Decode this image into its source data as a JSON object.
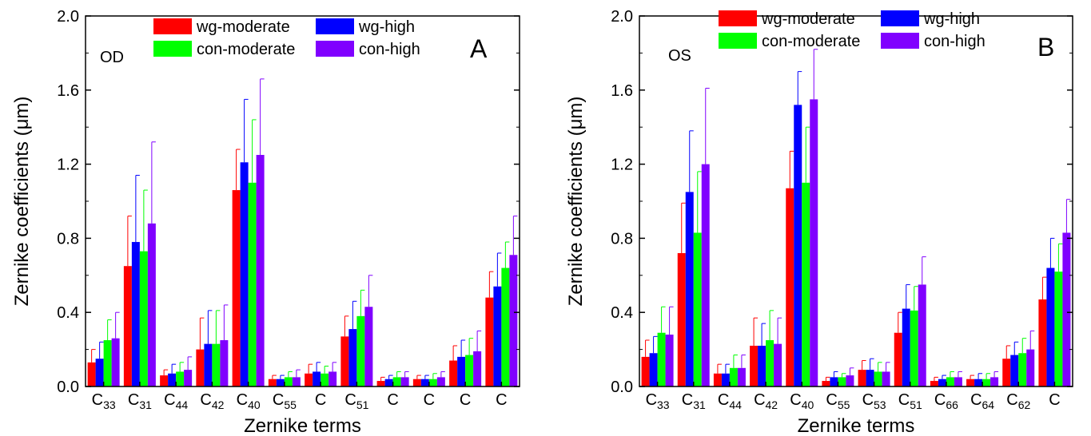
{
  "colors": {
    "wg_moderate": "#ff0000",
    "wg_high": "#0000ff",
    "con_moderate": "#00ff00",
    "con_high": "#8000ff",
    "axis": "#000000"
  },
  "chart_data": [
    {
      "type": "bar",
      "panel_letter": "A",
      "eye_label": "OD",
      "xlabel": "Zernike terms",
      "ylabel": "Zernike coefficients (μm)",
      "ylim": [
        0,
        2.0
      ],
      "yticks": [
        "0.0",
        "0.4",
        "0.8",
        "1.2",
        "1.6",
        "2.0"
      ],
      "grid": false,
      "legend_position": "top",
      "categories": [
        {
          "base": "C",
          "sub": "33"
        },
        {
          "base": "C",
          "sub": "31"
        },
        {
          "base": "C",
          "sub": "44"
        },
        {
          "base": "C",
          "sub": "42"
        },
        {
          "base": "C",
          "sub": "40"
        },
        {
          "base": "C",
          "sub": "55"
        },
        {
          "base": "C",
          "sub": ""
        },
        {
          "base": "C",
          "sub": "51"
        },
        {
          "base": "C",
          "sub": ""
        },
        {
          "base": "C",
          "sub": ""
        },
        {
          "base": "C",
          "sub": ""
        },
        {
          "base": "C",
          "sub": ""
        }
      ],
      "series": [
        {
          "name": "wg-moderate",
          "color_key": "wg_moderate",
          "values": [
            0.13,
            0.65,
            0.06,
            0.2,
            1.06,
            0.04,
            0.07,
            0.27,
            0.03,
            0.04,
            0.14,
            0.48
          ],
          "errors": [
            0.07,
            0.27,
            0.03,
            0.17,
            0.22,
            0.02,
            0.05,
            0.11,
            0.02,
            0.02,
            0.08,
            0.14
          ]
        },
        {
          "name": "wg-high",
          "color_key": "wg_high",
          "values": [
            0.15,
            0.78,
            0.07,
            0.23,
            1.21,
            0.04,
            0.08,
            0.31,
            0.04,
            0.04,
            0.16,
            0.54
          ],
          "errors": [
            0.09,
            0.36,
            0.05,
            0.18,
            0.34,
            0.02,
            0.05,
            0.15,
            0.02,
            0.02,
            0.09,
            0.18
          ]
        },
        {
          "name": "con-moderate",
          "color_key": "con_moderate",
          "values": [
            0.25,
            0.73,
            0.08,
            0.23,
            1.1,
            0.05,
            0.07,
            0.38,
            0.05,
            0.04,
            0.17,
            0.64
          ],
          "errors": [
            0.11,
            0.33,
            0.05,
            0.18,
            0.34,
            0.03,
            0.04,
            0.14,
            0.03,
            0.03,
            0.09,
            0.14
          ]
        },
        {
          "name": "con-high",
          "color_key": "con_high",
          "values": [
            0.26,
            0.88,
            0.09,
            0.25,
            1.25,
            0.05,
            0.08,
            0.43,
            0.05,
            0.05,
            0.19,
            0.71
          ],
          "errors": [
            0.14,
            0.44,
            0.07,
            0.19,
            0.41,
            0.04,
            0.05,
            0.17,
            0.03,
            0.03,
            0.11,
            0.21
          ]
        }
      ]
    },
    {
      "type": "bar",
      "panel_letter": "B",
      "eye_label": "OS",
      "xlabel": "Zernike terms",
      "ylabel": "Zernike coefficients (μm)",
      "ylim": [
        0,
        2.0
      ],
      "yticks": [
        "0.0",
        "0.4",
        "0.8",
        "1.2",
        "1.6",
        "2.0"
      ],
      "grid": false,
      "legend_position": "top",
      "categories": [
        {
          "base": "C",
          "sub": "33"
        },
        {
          "base": "C",
          "sub": "31"
        },
        {
          "base": "C",
          "sub": "44"
        },
        {
          "base": "C",
          "sub": "42"
        },
        {
          "base": "C",
          "sub": "40"
        },
        {
          "base": "C",
          "sub": "55"
        },
        {
          "base": "C",
          "sub": "53"
        },
        {
          "base": "C",
          "sub": "51"
        },
        {
          "base": "C",
          "sub": "66"
        },
        {
          "base": "C",
          "sub": "64"
        },
        {
          "base": "C",
          "sub": "62"
        },
        {
          "base": "C",
          "sub": ""
        }
      ],
      "series": [
        {
          "name": "wg-moderate",
          "color_key": "wg_moderate",
          "values": [
            0.16,
            0.72,
            0.07,
            0.22,
            1.07,
            0.03,
            0.09,
            0.29,
            0.03,
            0.04,
            0.15,
            0.47
          ],
          "errors": [
            0.09,
            0.27,
            0.05,
            0.15,
            0.2,
            0.02,
            0.05,
            0.11,
            0.02,
            0.02,
            0.07,
            0.12
          ]
        },
        {
          "name": "wg-high",
          "color_key": "wg_high",
          "values": [
            0.18,
            1.05,
            0.07,
            0.22,
            1.52,
            0.05,
            0.09,
            0.42,
            0.04,
            0.04,
            0.17,
            0.64
          ],
          "errors": [
            0.09,
            0.33,
            0.05,
            0.12,
            0.18,
            0.03,
            0.06,
            0.13,
            0.02,
            0.03,
            0.07,
            0.16
          ]
        },
        {
          "name": "con-moderate",
          "color_key": "con_moderate",
          "values": [
            0.29,
            0.83,
            0.1,
            0.25,
            1.1,
            0.05,
            0.08,
            0.41,
            0.05,
            0.04,
            0.18,
            0.62
          ],
          "errors": [
            0.14,
            0.33,
            0.07,
            0.16,
            0.3,
            0.02,
            0.05,
            0.13,
            0.03,
            0.03,
            0.08,
            0.15
          ]
        },
        {
          "name": "con-high",
          "color_key": "con_high",
          "values": [
            0.28,
            1.2,
            0.1,
            0.23,
            1.55,
            0.06,
            0.08,
            0.55,
            0.05,
            0.05,
            0.2,
            0.83
          ],
          "errors": [
            0.15,
            0.41,
            0.07,
            0.14,
            0.27,
            0.04,
            0.05,
            0.15,
            0.03,
            0.03,
            0.1,
            0.18
          ]
        }
      ]
    }
  ]
}
